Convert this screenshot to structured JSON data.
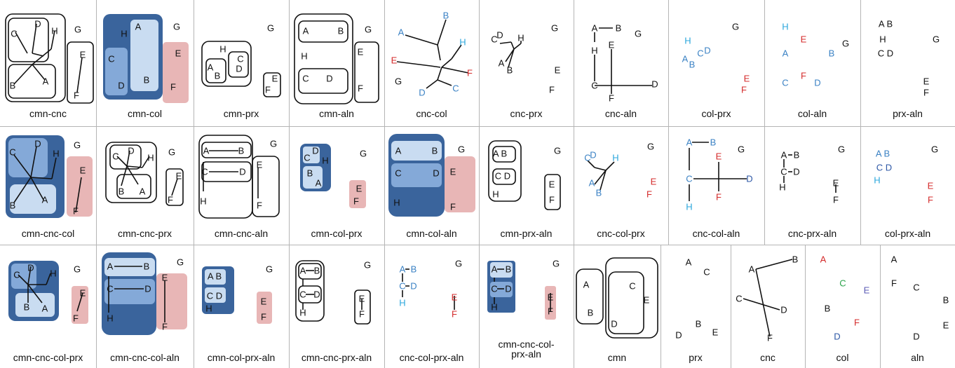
{
  "colors": {
    "dark_blue": "#3a649c",
    "mid_blue": "#84a9d8",
    "light_blue": "#c9dcf1",
    "pink": "#e8b6b6",
    "text_blue": "#3b82c4",
    "text_navy": "#2d57a6",
    "text_cyan": "#2aa6dc",
    "text_red": "#d42b2b",
    "text_green": "#2aa24a",
    "text_purple": "#5b5bb6",
    "text_dark": "#111111"
  },
  "letters": [
    "A",
    "B",
    "C",
    "D",
    "E",
    "F",
    "G",
    "H"
  ],
  "pairs": [
    "A B",
    "C D"
  ],
  "cells": [
    {
      "label": "cmn-cnc"
    },
    {
      "label": "cmn-col"
    },
    {
      "label": "cmn-prx"
    },
    {
      "label": "cmn-aln"
    },
    {
      "label": "cnc-col"
    },
    {
      "label": "cnc-prx"
    },
    {
      "label": "cnc-aln"
    },
    {
      "label": "col-prx"
    },
    {
      "label": "col-aln"
    },
    {
      "label": "prx-aln"
    },
    {
      "label": "cmn-cnc-col"
    },
    {
      "label": "cmn-cnc-prx"
    },
    {
      "label": "cmn-cnc-aln"
    },
    {
      "label": "cmn-col-prx"
    },
    {
      "label": "cmn-col-aln"
    },
    {
      "label": "cmn-prx-aln"
    },
    {
      "label": "cnc-col-prx"
    },
    {
      "label": "cnc-col-aln"
    },
    {
      "label": "cnc-prx-aln"
    },
    {
      "label": "col-prx-aln"
    },
    {
      "label": "cmn-cnc-col-prx"
    },
    {
      "label": "cmn-cnc-col-aln"
    },
    {
      "label": "cmn-col-prx-aln"
    },
    {
      "label": "cmn-cnc-prx-aln"
    },
    {
      "label": "cnc-col-prx-aln"
    },
    {
      "label": [
        "cmn-cnc-col-",
        "prx-aln"
      ]
    },
    {
      "label": "cmn"
    },
    {
      "label": "prx"
    },
    {
      "label": "cnc"
    },
    {
      "label": "col"
    },
    {
      "label": "aln"
    }
  ]
}
